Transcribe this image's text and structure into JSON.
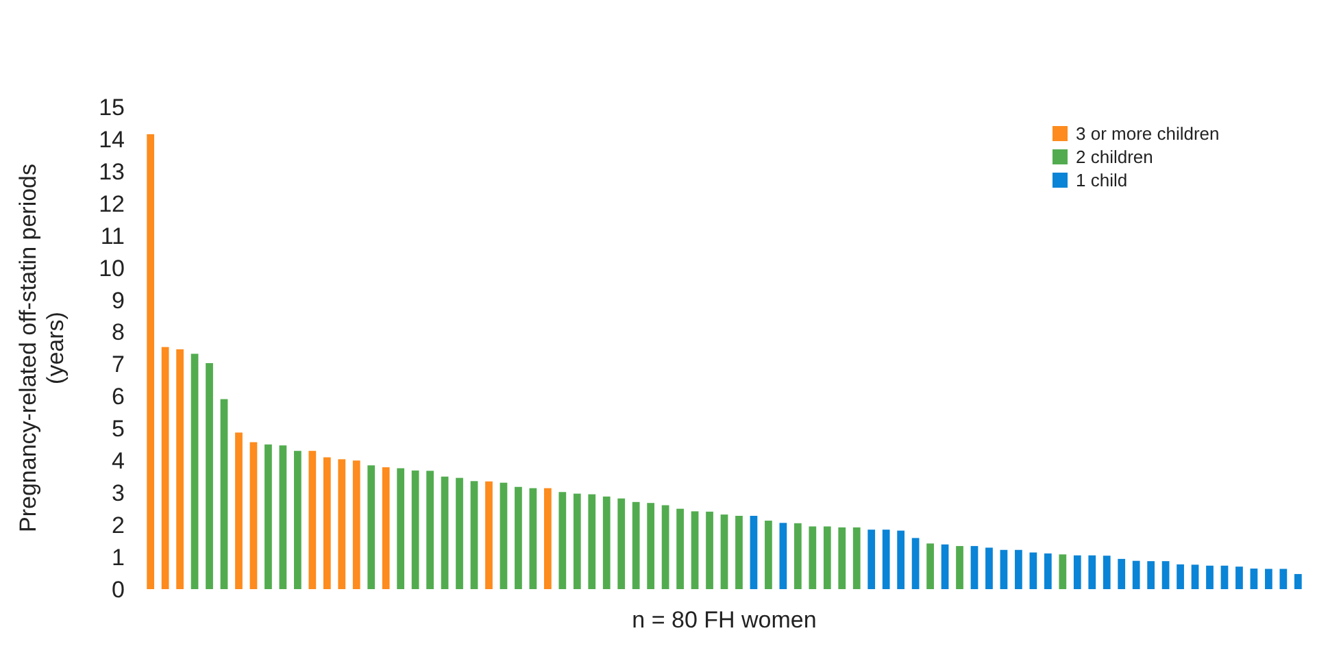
{
  "chart_data": {
    "type": "bar",
    "stacked": true,
    "ylabel": "Pregnancy-related off-statin periods (years)",
    "xlabel": "n = 80 FH women",
    "categories": [
      null,
      null,
      null,
      null,
      null,
      null,
      null,
      null,
      null,
      null,
      null,
      null,
      null,
      null,
      null,
      null,
      null,
      null,
      null,
      null,
      null,
      null,
      null,
      null,
      null,
      null,
      null,
      null,
      null,
      null,
      null,
      null,
      null,
      null,
      null,
      null,
      null,
      null,
      null,
      null,
      null,
      null,
      null,
      null,
      null,
      null,
      null,
      null,
      null,
      null,
      null,
      null,
      null,
      null,
      null,
      null,
      null,
      null,
      null,
      null,
      null,
      null,
      null,
      null,
      null,
      null,
      null,
      null,
      null,
      null,
      null,
      null,
      null,
      null,
      null,
      null,
      null,
      null,
      null
    ],
    "series": [
      {
        "name": "3 or more children",
        "color": "#fd8b1d",
        "values": [
          14.15,
          7.53,
          7.46,
          null,
          null,
          null,
          4.87,
          4.57,
          null,
          null,
          null,
          4.3,
          4.1,
          4.04,
          4.0,
          null,
          3.79,
          null,
          null,
          null,
          null,
          null,
          null,
          3.35,
          null,
          null,
          null,
          3.14,
          null,
          null,
          null,
          null,
          null,
          null,
          null,
          null,
          null,
          null,
          null,
          null,
          null,
          null,
          null,
          null,
          null,
          null,
          null,
          null,
          null,
          null,
          null,
          null,
          null,
          null,
          null,
          null,
          null,
          null,
          null,
          null,
          null,
          null,
          null,
          null,
          null,
          null,
          null,
          null,
          null,
          null,
          null,
          null,
          null,
          null,
          null,
          null,
          null,
          null,
          null
        ]
      },
      {
        "name": "2 children",
        "color": "#52ac4f",
        "values": [
          null,
          null,
          null,
          7.32,
          7.03,
          5.91,
          null,
          null,
          4.5,
          4.47,
          4.3,
          null,
          null,
          null,
          null,
          3.85,
          null,
          3.76,
          3.69,
          3.68,
          3.5,
          3.46,
          3.36,
          null,
          3.31,
          3.18,
          3.14,
          null,
          3.02,
          2.97,
          2.95,
          2.88,
          2.82,
          2.71,
          2.68,
          2.61,
          2.5,
          2.42,
          2.41,
          2.32,
          2.28,
          null,
          2.13,
          null,
          2.05,
          1.95,
          1.95,
          1.92,
          1.92,
          null,
          null,
          null,
          null,
          1.42,
          null,
          1.34,
          null,
          null,
          null,
          null,
          null,
          null,
          1.08,
          null,
          null,
          null,
          null,
          null,
          null,
          null,
          null,
          null,
          null,
          null,
          null,
          null,
          null,
          null,
          null
        ]
      },
      {
        "name": "1 child",
        "color": "#0a84d6",
        "values": [
          null,
          null,
          null,
          null,
          null,
          null,
          null,
          null,
          null,
          null,
          null,
          null,
          null,
          null,
          null,
          null,
          null,
          null,
          null,
          null,
          null,
          null,
          null,
          null,
          null,
          null,
          null,
          null,
          null,
          null,
          null,
          null,
          null,
          null,
          null,
          null,
          null,
          null,
          null,
          null,
          null,
          2.28,
          null,
          2.06,
          null,
          null,
          null,
          null,
          null,
          1.85,
          1.85,
          1.82,
          1.59,
          null,
          1.39,
          null,
          1.34,
          1.29,
          1.22,
          1.22,
          1.14,
          1.11,
          null,
          1.05,
          1.05,
          1.04,
          0.94,
          0.88,
          0.87,
          0.87,
          0.77,
          0.76,
          0.73,
          0.73,
          0.7,
          0.64,
          0.63,
          0.63,
          0.47
        ]
      }
    ],
    "ylim": [
      0,
      15
    ],
    "yticks": [
      0,
      1,
      2,
      3,
      4,
      5,
      6,
      7,
      8,
      9,
      10,
      11,
      12,
      13,
      14,
      15
    ],
    "legend": "top right"
  }
}
